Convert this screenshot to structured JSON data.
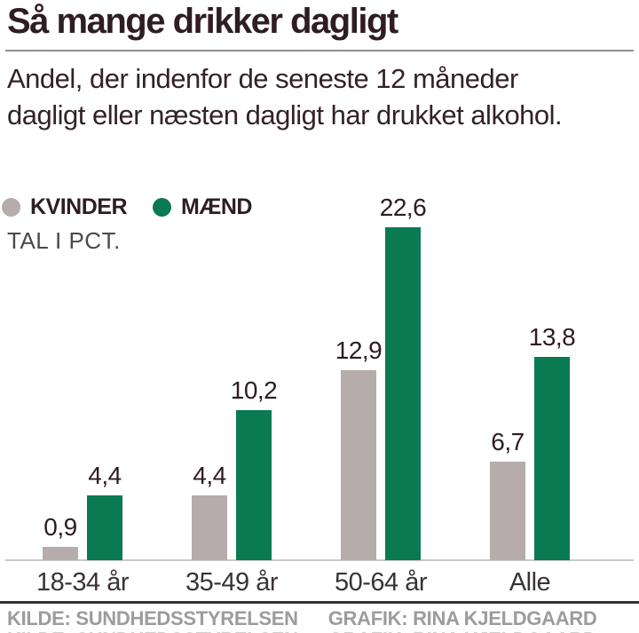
{
  "header": {
    "title": "Så mange drikker dagligt",
    "subtitle": "Andel, der indenfor de seneste 12 måneder dagligt eller næsten dagligt har drukket alkohol."
  },
  "legend": {
    "items": [
      {
        "label": "KVINDER",
        "color": "#b5acab"
      },
      {
        "label": "MÆND",
        "color": "#0a7a53"
      }
    ],
    "unit_note": "TAL I PCT."
  },
  "chart_data": {
    "type": "bar",
    "title": "Så mange drikker dagligt",
    "xlabel": "",
    "ylabel": "",
    "unit": "pct",
    "ylim": [
      0,
      24
    ],
    "grid": false,
    "legend_position": "top-left",
    "categories": [
      "18-34 år",
      "35-49 år",
      "50-64 år",
      "Alle"
    ],
    "series": [
      {
        "name": "KVINDER",
        "color": "#b5acab",
        "values": [
          0.9,
          4.4,
          12.9,
          6.7
        ],
        "value_labels": [
          "0,9",
          "4,4",
          "12,9",
          "6,7"
        ]
      },
      {
        "name": "MÆND",
        "color": "#0a7a53",
        "values": [
          4.4,
          10.2,
          22.6,
          13.8
        ],
        "value_labels": [
          "4,4",
          "10,2",
          "22,6",
          "13,8"
        ]
      }
    ]
  },
  "footer": {
    "source_label": "KILDE: SUNDHEDSSTYRELSEN",
    "credit_label": "GRAFIK: RINA KJELDGAARD"
  },
  "colors": {
    "text_dark": "#2e1d23",
    "bar_gray": "#b5acab",
    "bar_green": "#0a7a53",
    "baseline": "#c9c9c9",
    "title_rule": "#8f8f8f",
    "footer_rule": "#393134",
    "footer_text": "#9c9c9c"
  }
}
